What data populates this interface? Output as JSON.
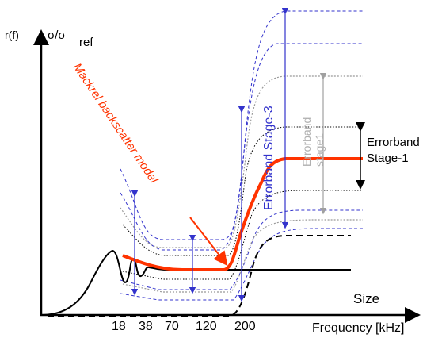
{
  "axes": {
    "y_label_left": "r(f)",
    "y_label_sigma": "σ/σ",
    "y_label_sigma_sub": "ref",
    "x_label": "Frequency [kHz]",
    "x_ticks": [
      "18",
      "38",
      "70",
      "120",
      "200"
    ]
  },
  "annotations": {
    "model_label": "Mackrel backscatter model",
    "stage3_label": "Errorband Stage-3",
    "stage1_grey_label": "Errorband stage1",
    "stage1_label_line1": "Errorband",
    "stage1_label_line2": "Stage-1",
    "size_label": "Size"
  },
  "colors": {
    "model": "#ff3300",
    "stage3_band": "#3333cc",
    "stage1_grey": "#a0a0a0",
    "black": "#000000"
  }
}
